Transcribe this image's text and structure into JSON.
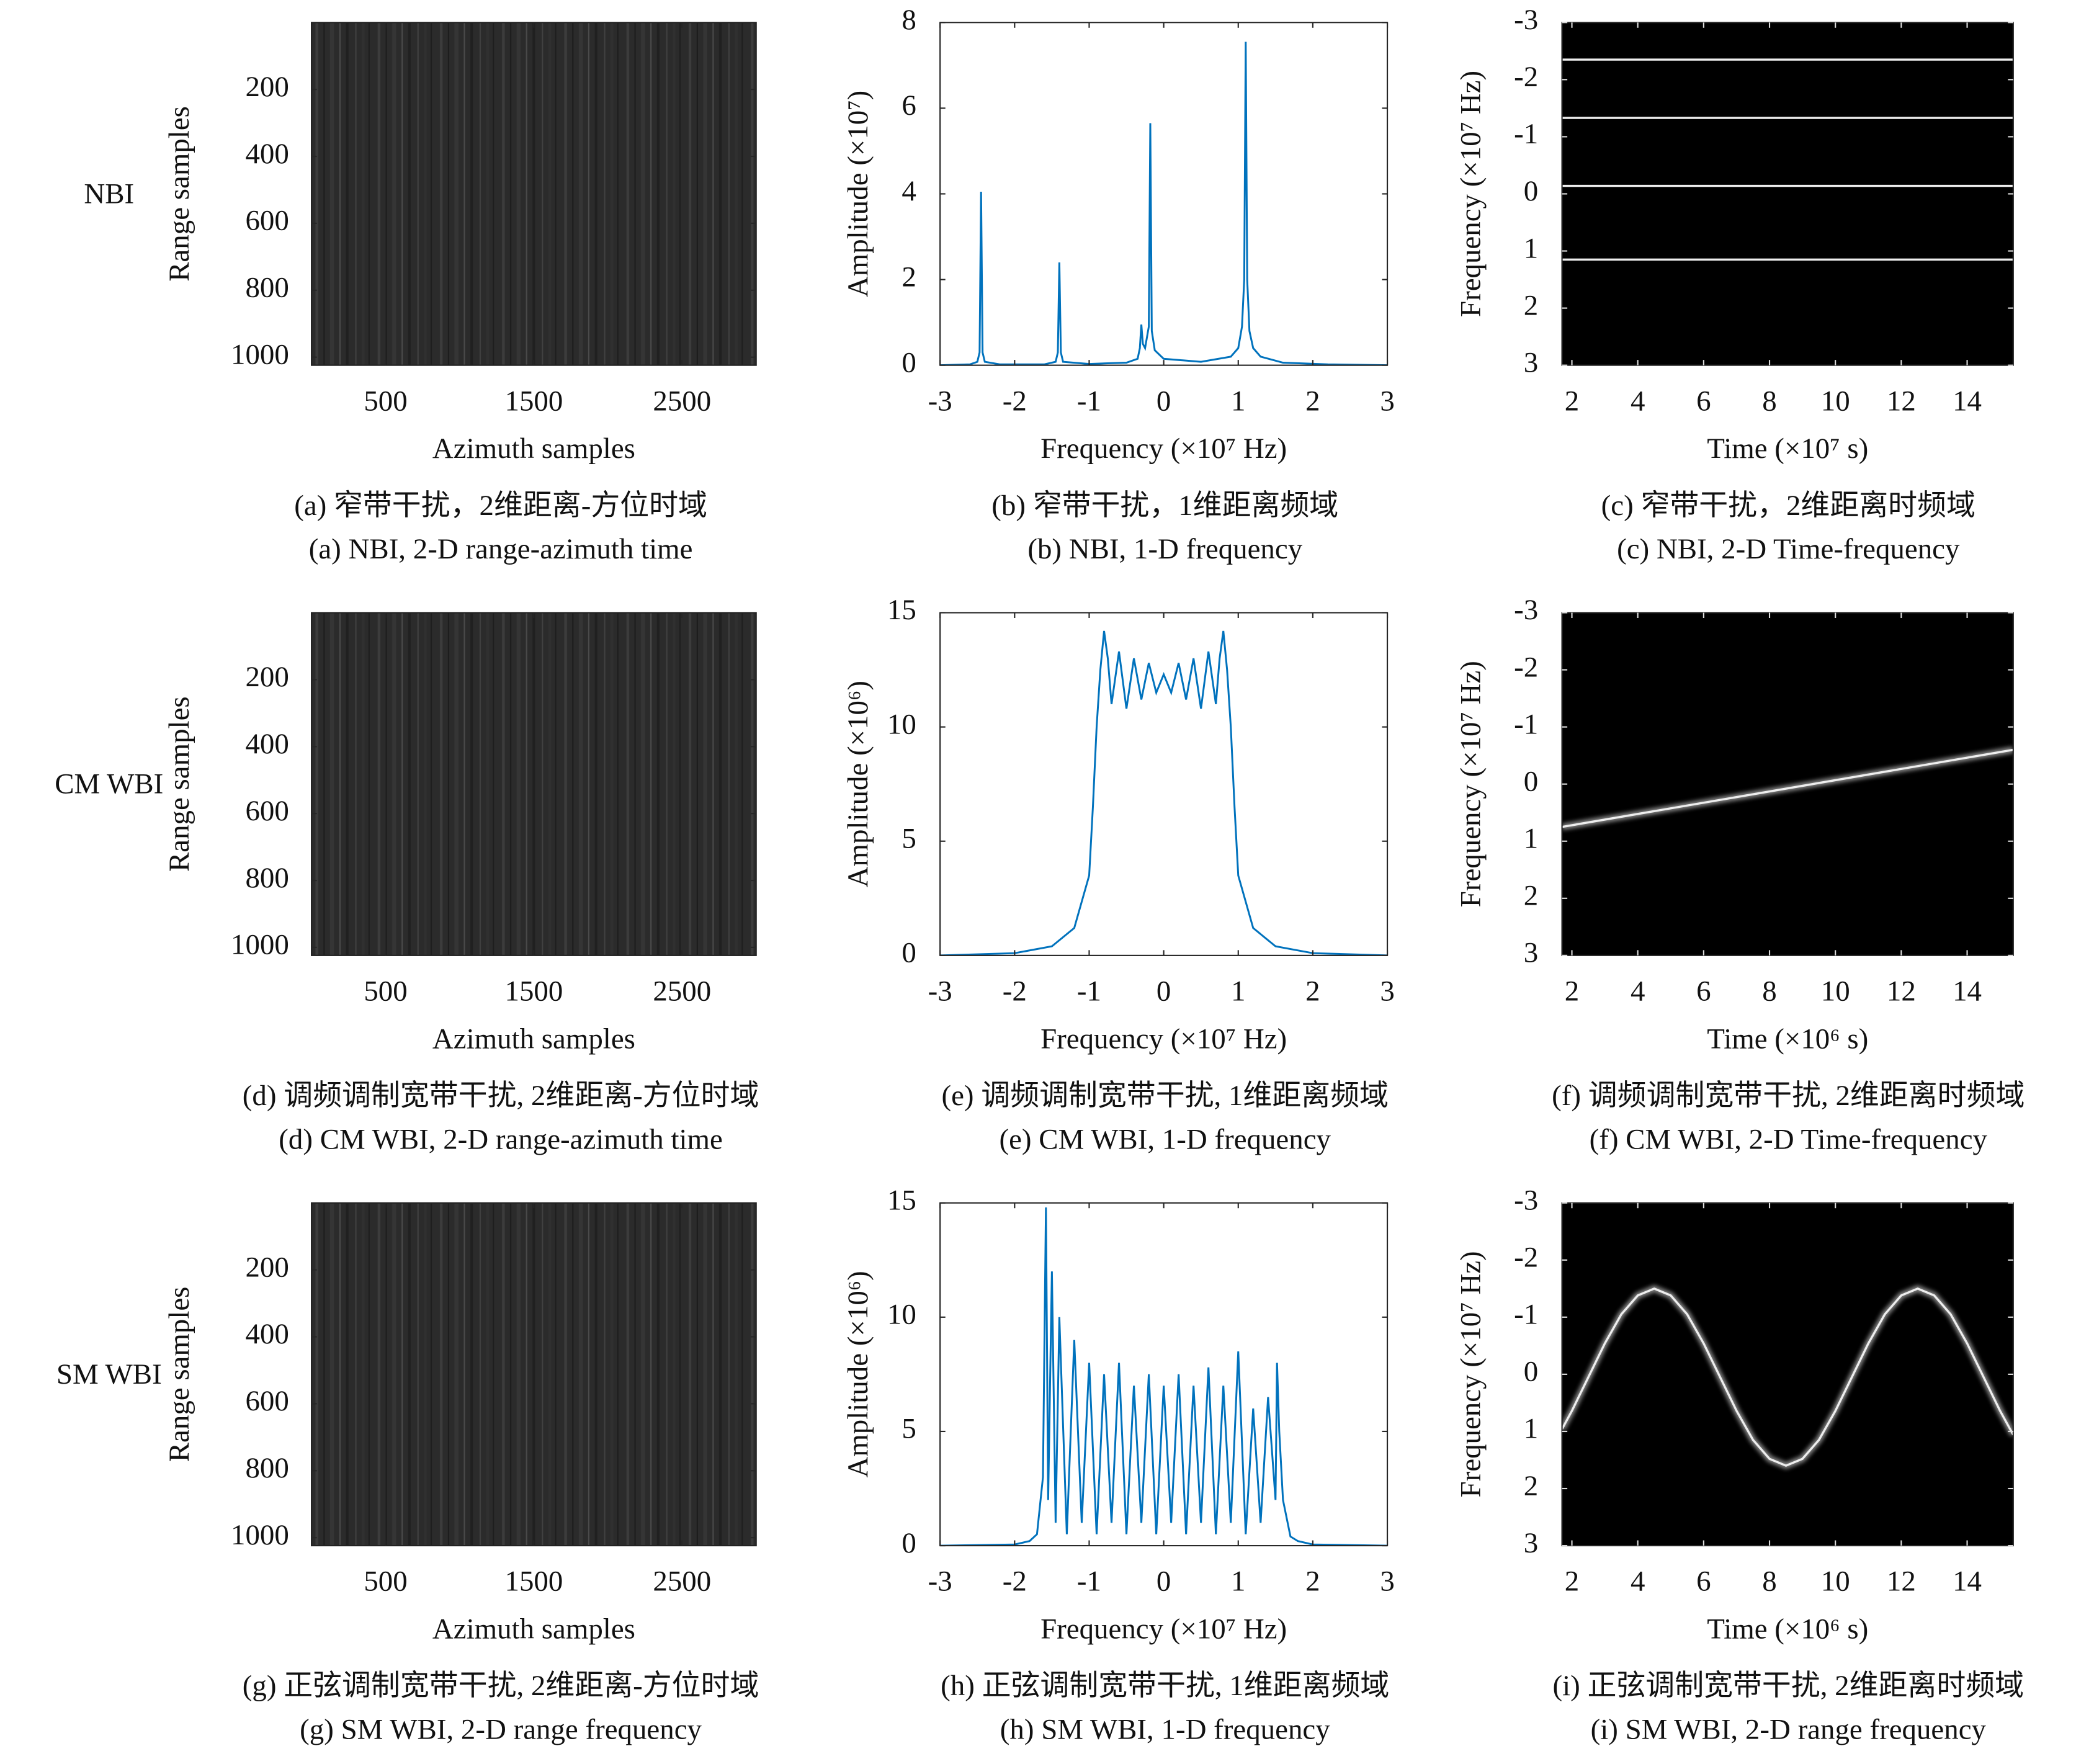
{
  "chart_data": [
    {
      "type": "image",
      "row_label": "NBI",
      "xlabel": "Azimuth samples",
      "ylabel": "Range samples",
      "xlim": [
        0,
        3000
      ],
      "ylim": [
        1024,
        0
      ],
      "xticks": [
        500,
        1500,
        2500
      ],
      "yticks": [
        200,
        400,
        600,
        800,
        1000
      ],
      "caption": [
        "(a) 窄带干扰，2维距离-方位时域",
        "(a)  NBI, 2-D range-azimuth time"
      ]
    },
    {
      "type": "line",
      "xlabel": "Frequency (×10⁷ Hz)",
      "ylabel": "Amplitude (×10⁷)",
      "xlim": [
        -3,
        3
      ],
      "ylim": [
        0,
        8
      ],
      "xticks": [
        -3,
        -2,
        -1,
        0,
        1,
        2,
        3
      ],
      "yticks": [
        0,
        2,
        4,
        6,
        8
      ],
      "color": "#0072bd",
      "x": [
        -3,
        -2.6,
        -2.5,
        -2.47,
        -2.45,
        -2.43,
        -2.4,
        -2.2,
        -1.6,
        -1.45,
        -1.42,
        -1.4,
        -1.38,
        -1.35,
        -1.0,
        -0.5,
        -0.35,
        -0.32,
        -0.3,
        -0.28,
        -0.25,
        -0.2,
        -0.18,
        -0.16,
        -0.12,
        0,
        0.5,
        0.9,
        1.0,
        1.05,
        1.08,
        1.1,
        1.12,
        1.15,
        1.2,
        1.3,
        1.6,
        2.2,
        3
      ],
      "values": [
        0,
        0.02,
        0.08,
        0.3,
        4.05,
        0.3,
        0.08,
        0.02,
        0.02,
        0.08,
        0.3,
        2.4,
        0.3,
        0.08,
        0.03,
        0.06,
        0.15,
        0.4,
        0.95,
        0.5,
        0.4,
        0.9,
        5.65,
        0.8,
        0.35,
        0.15,
        0.08,
        0.2,
        0.4,
        0.9,
        2.0,
        7.55,
        2.0,
        0.8,
        0.4,
        0.2,
        0.06,
        0.02,
        0
      ],
      "caption": [
        "(b) 窄带干扰，1维距离频域",
        "(b) NBI, 1-D frequency"
      ]
    },
    {
      "type": "spectrogram",
      "xlabel": "Time (×10⁷ s)",
      "ylabel": "Frequency (×10⁷ Hz)",
      "xlim": [
        1.7,
        15.4
      ],
      "ylim": [
        3,
        -3
      ],
      "xticks": [
        2,
        4,
        6,
        8,
        10,
        12,
        14
      ],
      "yticks": [
        -3,
        -2,
        -1,
        0,
        1,
        2,
        3
      ],
      "lines": [
        {
          "x": [
            1.7,
            15.4
          ],
          "y": [
            -2.35,
            -2.35
          ]
        },
        {
          "x": [
            1.7,
            15.4
          ],
          "y": [
            -1.33,
            -1.33
          ]
        },
        {
          "x": [
            1.7,
            15.4
          ],
          "y": [
            -0.14,
            -0.14
          ]
        },
        {
          "x": [
            1.7,
            15.4
          ],
          "y": [
            1.15,
            1.15
          ]
        }
      ],
      "caption": [
        "(c) 窄带干扰，2维距离时频域",
        "(c) NBI, 2-D Time-frequency"
      ]
    },
    {
      "type": "image",
      "row_label": "CM WBI",
      "xlabel": "Azimuth samples",
      "ylabel": "Range samples",
      "xlim": [
        0,
        3000
      ],
      "ylim": [
        1024,
        0
      ],
      "xticks": [
        500,
        1500,
        2500
      ],
      "yticks": [
        200,
        400,
        600,
        800,
        1000
      ],
      "caption": [
        "(d) 调频调制宽带干扰, 2维距离-方位时域",
        "(d) CM WBI, 2-D range-azimuth time"
      ]
    },
    {
      "type": "line",
      "xlabel": "Frequency (×10⁷ Hz)",
      "ylabel": "Amplitude (×10⁶)",
      "xlim": [
        -3,
        3
      ],
      "ylim": [
        0,
        15
      ],
      "xticks": [
        -3,
        -2,
        -1,
        0,
        1,
        2,
        3
      ],
      "yticks": [
        0,
        5,
        10,
        15
      ],
      "color": "#0072bd",
      "x": [
        -3,
        -2,
        -1.5,
        -1.2,
        -1.0,
        -0.95,
        -0.9,
        -0.85,
        -0.8,
        -0.75,
        -0.7,
        -0.6,
        -0.5,
        -0.4,
        -0.3,
        -0.2,
        -0.1,
        0,
        0.1,
        0.2,
        0.3,
        0.4,
        0.5,
        0.6,
        0.7,
        0.75,
        0.8,
        0.85,
        0.9,
        0.95,
        1.0,
        1.2,
        1.5,
        2,
        3
      ],
      "values": [
        0,
        0.1,
        0.4,
        1.2,
        3.5,
        6.5,
        10,
        12.5,
        14.2,
        13,
        11,
        13.3,
        10.8,
        13,
        11.2,
        12.8,
        11.5,
        12.3,
        11.5,
        12.8,
        11.2,
        13,
        10.8,
        13.3,
        11,
        13,
        14.2,
        12.5,
        10,
        6.5,
        3.5,
        1.2,
        0.4,
        0.1,
        0
      ],
      "caption": [
        "(e) 调频调制宽带干扰, 1维距离频域",
        "(e) CM WBI, 1-D frequency"
      ]
    },
    {
      "type": "spectrogram",
      "xlabel": "Time (×10⁶ s)",
      "ylabel": "Frequency (×10⁷ Hz)",
      "xlim": [
        1.7,
        15.4
      ],
      "ylim": [
        3,
        -3
      ],
      "xticks": [
        2,
        4,
        6,
        8,
        10,
        12,
        14
      ],
      "yticks": [
        -3,
        -2,
        -1,
        0,
        1,
        2,
        3
      ],
      "lines": [
        {
          "x": [
            1.7,
            15.4
          ],
          "y": [
            0.75,
            -0.6
          ]
        }
      ],
      "caption": [
        "(f) 调频调制宽带干扰, 2维距离时频域",
        "(f) CM WBI, 2-D Time-frequency"
      ]
    },
    {
      "type": "image",
      "row_label": "SM WBI",
      "xlabel": "Azimuth samples",
      "ylabel": "Range samples",
      "xlim": [
        0,
        3000
      ],
      "ylim": [
        1024,
        0
      ],
      "xticks": [
        500,
        1500,
        2500
      ],
      "yticks": [
        200,
        400,
        600,
        800,
        1000
      ],
      "caption": [
        "(g) 正弦调制宽带干扰, 2维距离-方位时域",
        "(g) SM WBI, 2-D range frequency"
      ]
    },
    {
      "type": "line",
      "xlabel": "Frequency (×10⁷ Hz)",
      "ylabel": "Amplitude (×10⁶)",
      "xlim": [
        -3,
        3
      ],
      "ylim": [
        0,
        15
      ],
      "xticks": [
        -3,
        -2,
        -1,
        0,
        1,
        2,
        3
      ],
      "yticks": [
        0,
        5,
        10,
        15
      ],
      "color": "#0072bd",
      "x": [
        -3,
        -2,
        -1.8,
        -1.7,
        -1.62,
        -1.58,
        -1.55,
        -1.5,
        -1.45,
        -1.4,
        -1.3,
        -1.2,
        -1.1,
        -1.0,
        -0.9,
        -0.8,
        -0.7,
        -0.6,
        -0.5,
        -0.4,
        -0.3,
        -0.2,
        -0.1,
        0,
        0.1,
        0.2,
        0.3,
        0.4,
        0.5,
        0.6,
        0.7,
        0.8,
        0.9,
        1.0,
        1.1,
        1.2,
        1.3,
        1.4,
        1.5,
        1.52,
        1.55,
        1.6,
        1.7,
        1.8,
        2,
        3
      ],
      "values": [
        0,
        0.05,
        0.2,
        0.5,
        3,
        14.8,
        2,
        12,
        1,
        10,
        0.5,
        9,
        1,
        8,
        0.5,
        7.5,
        1,
        8,
        0.5,
        7,
        1,
        7.5,
        0.5,
        7,
        1,
        7.5,
        0.5,
        7,
        1,
        7.8,
        0.5,
        7,
        1,
        8.5,
        0.5,
        6,
        1,
        6.5,
        2,
        8,
        5,
        2,
        0.4,
        0.2,
        0.05,
        0
      ],
      "caption": [
        "(h) 正弦调制宽带干扰, 1维距离频域",
        "(h) SM WBI, 1-D frequency"
      ]
    },
    {
      "type": "spectrogram",
      "xlabel": "Time (×10⁶ s)",
      "ylabel": "Frequency (×10⁷ Hz)",
      "xlim": [
        1.7,
        15.4
      ],
      "ylim": [
        3,
        -3
      ],
      "xticks": [
        2,
        4,
        6,
        8,
        10,
        12,
        14
      ],
      "yticks": [
        -3,
        -2,
        -1,
        0,
        1,
        2,
        3
      ],
      "lines": [
        {
          "x": [
            1.7,
            2,
            2.5,
            3,
            3.5,
            4,
            4.5,
            5,
            5.5,
            6,
            6.5,
            7,
            7.5,
            8,
            8.5,
            9,
            9.5,
            10,
            10.5,
            11,
            11.5,
            12,
            12.5,
            13,
            13.5,
            14,
            14.5,
            15,
            15.4
          ],
          "y": [
            0.96,
            0.64,
            0.05,
            -0.54,
            -1.05,
            -1.38,
            -1.5,
            -1.38,
            -1.05,
            -0.54,
            0.05,
            0.64,
            1.15,
            1.48,
            1.6,
            1.48,
            1.15,
            0.64,
            0.05,
            -0.54,
            -1.05,
            -1.38,
            -1.5,
            -1.38,
            -1.05,
            -0.54,
            0.05,
            0.64,
            1.06
          ]
        }
      ],
      "caption": [
        "(i) 正弦调制宽带干扰, 2维距离时频域",
        "(i) SM WBI, 2-D range frequency"
      ]
    }
  ]
}
